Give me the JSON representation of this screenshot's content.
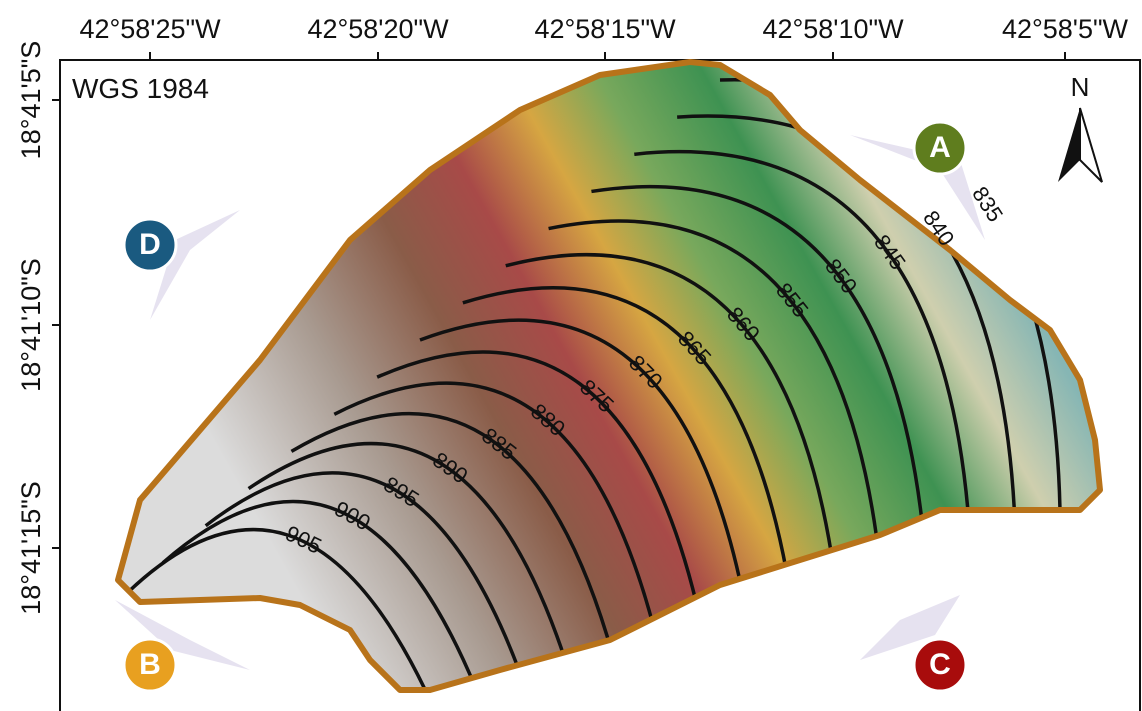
{
  "map": {
    "crs": "WGS 1984",
    "north": "N",
    "top_labels": [
      "42°58'25\"W",
      "42°58'20\"W",
      "42°58'15\"W",
      "42°58'10\"W",
      "42°58'5\"W"
    ],
    "left_labels": [
      "18°41'5\"S",
      "18°41'10\"S",
      "18°41'15\"S"
    ],
    "markers": [
      {
        "label": "A",
        "color": "#5f7d1e"
      },
      {
        "label": "B",
        "color": "#e8a020"
      },
      {
        "label": "C",
        "color": "#a80c0c"
      },
      {
        "label": "D",
        "color": "#1a5a80"
      }
    ],
    "contour_labels": [
      "905",
      "900",
      "895",
      "890",
      "885",
      "880",
      "875",
      "870",
      "865",
      "860",
      "855",
      "850",
      "845",
      "840",
      "835"
    ]
  }
}
